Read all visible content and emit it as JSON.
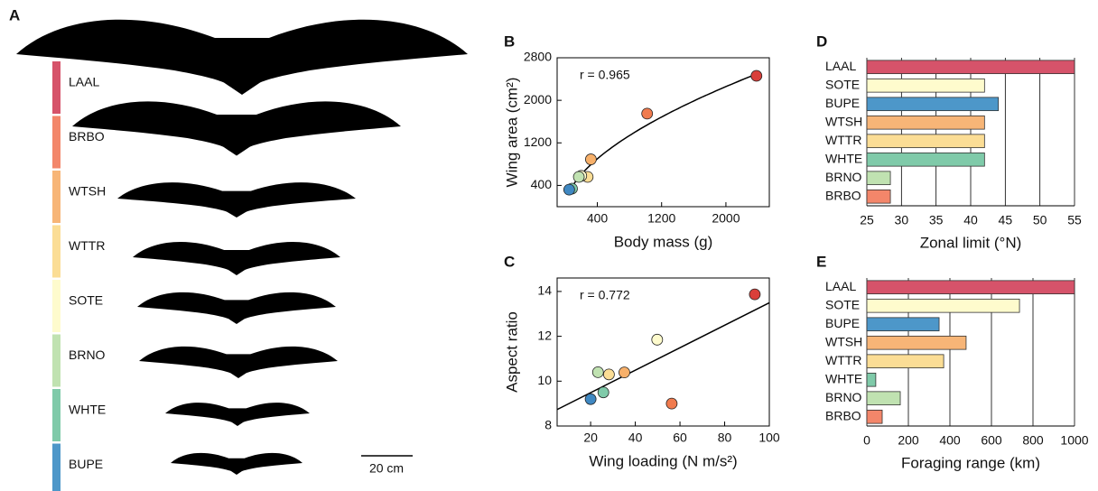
{
  "panel_a": {
    "label": "A",
    "species": [
      "LAAL",
      "BRBO",
      "WTSH",
      "WTTR",
      "SOTE",
      "BRNO",
      "WHTE",
      "BUPE"
    ],
    "colors": [
      "#d6536a",
      "#f3866a",
      "#f7b577",
      "#fbdd95",
      "#fefbcd",
      "#c0e2b1",
      "#7fcaa9",
      "#4d97c9"
    ],
    "scale_bar": "20 cm"
  },
  "chart_data": [
    {
      "type": "scatter",
      "panel": "B",
      "annotation": "r = 0.965",
      "xlabel": "Body mass (g)",
      "ylabel": "Wing area (cm²)",
      "x": [
        2380,
        1020,
        320,
        280,
        200,
        170,
        85,
        50
      ],
      "values": [
        2460,
        1750,
        890,
        560,
        580,
        560,
        340,
        320
      ],
      "colors": [
        "#d93f3a",
        "#f07b4e",
        "#f7b06a",
        "#fbdd95",
        "#fefbcd",
        "#c0e2b1",
        "#7fcaa9",
        "#3f88c2"
      ],
      "xlim": [
        -100,
        2540
      ],
      "ylim": [
        0,
        2800
      ],
      "xticks": [
        400,
        1200,
        2000
      ],
      "yticks": [
        400,
        1200,
        2000,
        2800
      ],
      "fit": "power"
    },
    {
      "type": "scatter",
      "panel": "C",
      "annotation": "r = 0.772",
      "xlabel": "Wing loading (N m/s²)",
      "ylabel": "Aspect ratio",
      "x": [
        93.5,
        56.3,
        35.1,
        28.2,
        49.8,
        23.3,
        25.7,
        20
      ],
      "values": [
        13.87,
        9.0,
        10.39,
        10.3,
        11.85,
        10.4,
        9.5,
        9.2
      ],
      "colors": [
        "#d93f3a",
        "#f07b4e",
        "#f7b06a",
        "#fbdd95",
        "#fefbcd",
        "#c0e2b1",
        "#7fcaa9",
        "#3f88c2"
      ],
      "xlim": [
        5,
        100
      ],
      "ylim": [
        8,
        14.6
      ],
      "xticks": [
        20,
        40,
        60,
        80,
        100
      ],
      "yticks": [
        8,
        10,
        12,
        14
      ],
      "fit": "linear"
    },
    {
      "type": "bar",
      "orientation": "horizontal",
      "panel": "D",
      "xlabel": "Zonal limit (°N)",
      "categories": [
        "LAAL",
        "SOTE",
        "BUPE",
        "WTSH",
        "WTTR",
        "WHTE",
        "BRNO",
        "BRBO"
      ],
      "values": [
        55,
        42,
        44,
        42,
        42,
        42,
        28.4,
        28.4
      ],
      "colors": [
        "#d6536a",
        "#fefbcd",
        "#4d97c9",
        "#f7b577",
        "#fbdd95",
        "#7fcaa9",
        "#c0e2b1",
        "#f3866a"
      ],
      "xlim": [
        25,
        55
      ],
      "xticks": [
        25,
        30,
        35,
        40,
        45,
        50,
        55
      ],
      "grid": true
    },
    {
      "type": "bar",
      "orientation": "horizontal",
      "panel": "E",
      "xlabel": "Foraging range (km)",
      "categories": [
        "LAAL",
        "SOTE",
        "BUPE",
        "WTSH",
        "WTTR",
        "WHTE",
        "BRNO",
        "BRBO"
      ],
      "values": [
        1000,
        735,
        348,
        478,
        370,
        43,
        161,
        74
      ],
      "colors": [
        "#d6536a",
        "#fefbcd",
        "#4d97c9",
        "#f7b577",
        "#fbdd95",
        "#7fcaa9",
        "#c0e2b1",
        "#f3866a"
      ],
      "xlim": [
        0,
        1000
      ],
      "xticks": [
        0,
        200,
        400,
        600,
        800,
        1000
      ],
      "grid": true
    }
  ]
}
